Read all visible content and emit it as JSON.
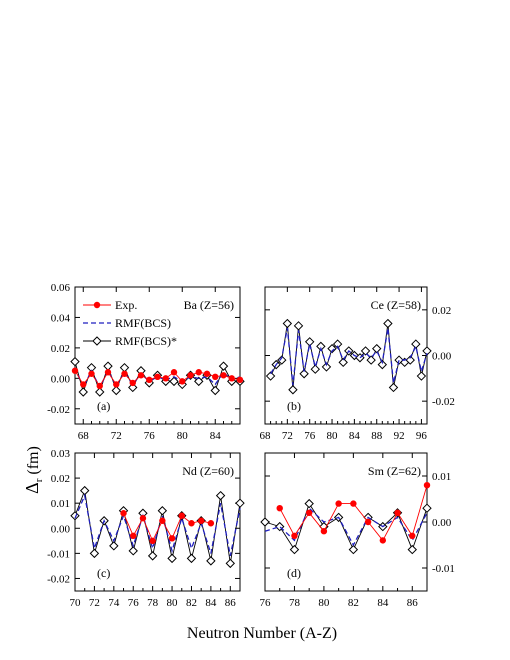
{
  "figure": {
    "xlabel": "Neutron Number (A-Z)",
    "ylabel_main": "Δ",
    "ylabel_sub": "r",
    "ylabel_unit": "(fm)"
  },
  "legend": {
    "exp": "Exp.",
    "rmf": "RMF(BCS)",
    "rmf_star": "RMF(BCS)*"
  },
  "colors": {
    "exp": "#ff0000",
    "rmf": "#1f1fbf",
    "rmf_star": "#000000"
  },
  "chart_data": [
    {
      "type": "line",
      "panel": "a",
      "title": "Ba (Z=56)",
      "letter": "(a)",
      "y_axis_side": "left",
      "xlim": [
        67,
        87
      ],
      "ylim": [
        -0.03,
        0.06
      ],
      "xticks": [
        68,
        72,
        76,
        80,
        84
      ],
      "yticks": [
        -0.02,
        0.0,
        0.02,
        0.04,
        0.06
      ],
      "ytick_labels": [
        "-0.02",
        "0.00",
        "0.02",
        "0.04",
        "0.06"
      ],
      "legend_position": "top-left",
      "series": [
        {
          "name": "RMF(BCS)*",
          "x": [
            67,
            68,
            69,
            70,
            71,
            72,
            73,
            74,
            75,
            76,
            77,
            78,
            79,
            80,
            81,
            82,
            83,
            84,
            85,
            86,
            87
          ],
          "y": [
            0.011,
            -0.009,
            0.007,
            -0.009,
            0.008,
            -0.008,
            0.007,
            -0.006,
            0.005,
            -0.003,
            0.002,
            -0.002,
            -0.002,
            -0.004,
            0.002,
            -0.002,
            0.002,
            -0.008,
            0.008,
            -0.002,
            -0.002
          ]
        },
        {
          "name": "RMF(BCS)",
          "x": [
            67,
            68,
            69,
            70,
            71,
            72,
            73,
            74,
            75,
            76,
            77,
            78,
            79,
            80,
            81,
            82,
            83,
            84,
            85,
            86,
            87
          ],
          "y": [
            0.007,
            -0.006,
            0.005,
            -0.006,
            0.005,
            -0.005,
            0.004,
            -0.004,
            0.003,
            -0.002,
            0.001,
            -0.001,
            0.001,
            -0.002,
            0.001,
            0.0,
            0.001,
            -0.004,
            0.004,
            -0.001,
            0.001
          ]
        },
        {
          "name": "Exp.",
          "x": [
            67,
            68,
            69,
            70,
            71,
            72,
            73,
            74,
            75,
            76,
            77,
            78,
            79,
            80,
            81,
            82,
            83,
            84,
            85,
            86,
            87
          ],
          "y": [
            0.005,
            -0.004,
            0.003,
            -0.005,
            0.004,
            -0.004,
            0.003,
            -0.003,
            0.002,
            -0.001,
            0.001,
            0.0,
            0.004,
            -0.002,
            0.002,
            0.004,
            0.003,
            0.001,
            0.002,
            0.0,
            -0.001
          ]
        }
      ]
    },
    {
      "type": "line",
      "panel": "b",
      "title": "Ce (Z=58)",
      "letter": "(b)",
      "y_axis_side": "right",
      "xlim": [
        68,
        97
      ],
      "ylim": [
        -0.03,
        0.03
      ],
      "xticks": [
        68,
        72,
        76,
        80,
        84,
        88,
        92,
        96
      ],
      "yticks": [
        -0.02,
        0.0,
        0.02
      ],
      "ytick_labels": [
        "-0.02",
        "0.00",
        "0.02"
      ],
      "series": [
        {
          "name": "RMF(BCS)*",
          "x": [
            69,
            70,
            71,
            72,
            73,
            74,
            75,
            76,
            77,
            78,
            79,
            80,
            81,
            82,
            83,
            84,
            85,
            86,
            87,
            88,
            89,
            90,
            91,
            92,
            93,
            94,
            95,
            96,
            97
          ],
          "y": [
            -0.009,
            -0.004,
            -0.002,
            0.014,
            -0.015,
            0.013,
            -0.008,
            0.006,
            -0.006,
            0.004,
            -0.005,
            0.003,
            0.005,
            -0.003,
            0.002,
            0.0,
            -0.001,
            0.002,
            -0.002,
            0.003,
            -0.004,
            0.014,
            -0.014,
            -0.002,
            -0.003,
            -0.002,
            0.005,
            -0.009,
            0.002
          ]
        },
        {
          "name": "RMF(BCS)",
          "x": [
            69,
            70,
            71,
            72,
            73,
            74,
            75,
            76,
            77,
            78,
            79,
            80,
            81,
            82,
            83,
            84,
            85,
            86,
            87,
            88,
            89,
            90,
            91,
            92,
            93,
            94,
            95,
            96,
            97
          ],
          "y": [
            -0.008,
            -0.004,
            -0.001,
            0.012,
            -0.013,
            0.011,
            -0.007,
            0.005,
            -0.005,
            0.003,
            -0.004,
            0.002,
            0.004,
            -0.002,
            0.002,
            0.0,
            -0.001,
            0.001,
            -0.001,
            0.002,
            -0.003,
            0.012,
            -0.012,
            -0.002,
            -0.002,
            -0.001,
            0.004,
            -0.007,
            0.001
          ]
        }
      ]
    },
    {
      "type": "line",
      "panel": "c",
      "title": "Nd (Z=60)",
      "letter": "(c)",
      "y_axis_side": "left",
      "xlim": [
        70,
        87
      ],
      "ylim": [
        -0.025,
        0.03
      ],
      "xticks": [
        70,
        72,
        74,
        76,
        78,
        80,
        82,
        84,
        86
      ],
      "yticks": [
        -0.02,
        -0.01,
        0.0,
        0.01,
        0.02,
        0.03
      ],
      "ytick_labels": [
        "-0.02",
        "-0.01",
        "0.00",
        "0.01",
        "0.02",
        "0.03"
      ],
      "series": [
        {
          "name": "RMF(BCS)*",
          "x": [
            70,
            71,
            72,
            73,
            74,
            75,
            76,
            77,
            78,
            79,
            80,
            81,
            82,
            83,
            84,
            85,
            86,
            87
          ],
          "y": [
            0.005,
            0.015,
            -0.01,
            0.003,
            -0.007,
            0.007,
            -0.009,
            0.006,
            -0.011,
            0.007,
            -0.012,
            0.005,
            -0.012,
            0.003,
            -0.013,
            0.013,
            -0.014,
            0.01
          ]
        },
        {
          "name": "RMF(BCS)",
          "x": [
            70,
            71,
            72,
            73,
            74,
            75,
            76,
            77,
            78,
            79,
            80,
            81,
            82,
            83,
            84,
            85,
            86,
            87
          ],
          "y": [
            0.004,
            0.013,
            -0.008,
            0.003,
            -0.005,
            0.005,
            -0.007,
            0.005,
            -0.008,
            0.005,
            -0.009,
            0.004,
            -0.008,
            0.002,
            -0.01,
            0.01,
            -0.011,
            0.008
          ]
        },
        {
          "name": "Exp.",
          "x": [
            75,
            76,
            77,
            78,
            79,
            80,
            81,
            82,
            83,
            84
          ],
          "y": [
            0.006,
            -0.003,
            0.004,
            -0.005,
            0.003,
            -0.004,
            0.005,
            0.002,
            0.003,
            0.002
          ]
        }
      ]
    },
    {
      "type": "line",
      "panel": "d",
      "title": "Sm (Z=62)",
      "letter": "(d)",
      "y_axis_side": "right",
      "xlim": [
        76,
        87
      ],
      "ylim": [
        -0.015,
        0.015
      ],
      "xticks": [
        76,
        78,
        80,
        82,
        84,
        86
      ],
      "yticks": [
        -0.01,
        0.0,
        0.01
      ],
      "ytick_labels": [
        "-0.01",
        "0.00",
        "0.01"
      ],
      "series": [
        {
          "name": "RMF(BCS)*",
          "x": [
            76,
            77,
            78,
            79,
            80,
            81,
            82,
            83,
            84,
            85,
            86,
            87
          ],
          "y": [
            0.0,
            -0.001,
            -0.006,
            0.004,
            -0.001,
            0.001,
            -0.006,
            0.001,
            -0.001,
            0.002,
            -0.006,
            0.003
          ]
        },
        {
          "name": "RMF(BCS)",
          "x": [
            76,
            77,
            78,
            79,
            80,
            81,
            82,
            83,
            84,
            85,
            86,
            87
          ],
          "y": [
            -0.002,
            -0.001,
            -0.004,
            0.003,
            0.0,
            0.001,
            -0.005,
            0.001,
            -0.001,
            0.001,
            -0.004,
            0.002
          ]
        },
        {
          "name": "Exp.",
          "x": [
            77,
            78,
            79,
            80,
            81,
            82,
            83,
            84,
            85,
            86,
            87
          ],
          "y": [
            0.003,
            -0.003,
            0.002,
            -0.002,
            0.004,
            0.004,
            0.0,
            -0.004,
            0.002,
            -0.003,
            0.008
          ]
        }
      ]
    }
  ]
}
